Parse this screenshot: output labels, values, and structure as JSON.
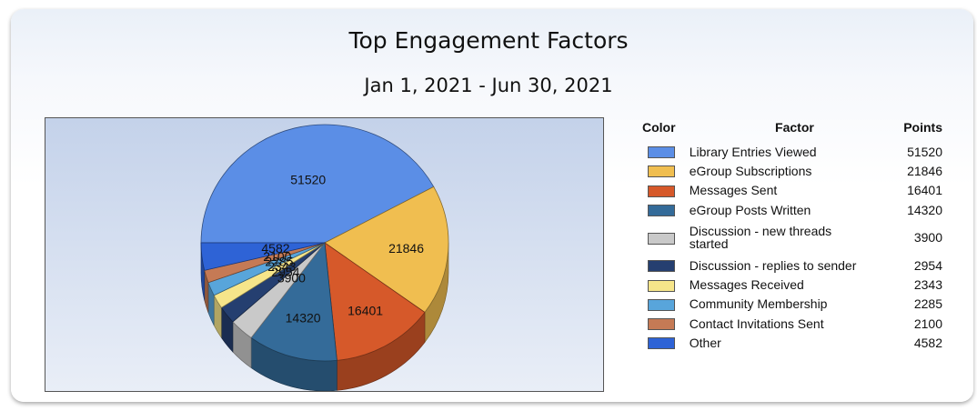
{
  "chart_data": {
    "type": "pie",
    "title": "Top Engagement Factors",
    "subtitle": "Jan 1, 2021 - Jun 30, 2021",
    "legend": {
      "placement": "right",
      "headers": {
        "color": "Color",
        "factor": "Factor",
        "points": "Points"
      }
    },
    "slices": [
      {
        "label": "Library Entries Viewed",
        "value": 51520,
        "display": "51520",
        "color": "#5b8ee6"
      },
      {
        "label": "eGroup Subscriptions",
        "value": 21846,
        "display": "21846",
        "color": "#f0be50"
      },
      {
        "label": "Messages Sent",
        "value": 16401,
        "display": "16401",
        "color": "#d6592a"
      },
      {
        "label": "eGroup Posts Written",
        "value": 14320,
        "display": "14320",
        "color": "#346b99"
      },
      {
        "label": "Discussion - new threads started",
        "value": 3900,
        "display": "3900",
        "color": "#c9c9c9"
      },
      {
        "label": "Discussion - replies to sender",
        "value": 2954,
        "display": "2954",
        "color": "#253f70"
      },
      {
        "label": "Messages Received",
        "value": 2343,
        "display": "2343",
        "color": "#f6e58a"
      },
      {
        "label": "Community Membership",
        "value": 2285,
        "display": "2285",
        "color": "#58a5db"
      },
      {
        "label": "Contact Invitations Sent",
        "value": 2100,
        "display": "2100",
        "color": "#c57a55"
      },
      {
        "label": "Other",
        "value": 4582,
        "display": "4582",
        "color": "#2e63d6"
      }
    ]
  }
}
